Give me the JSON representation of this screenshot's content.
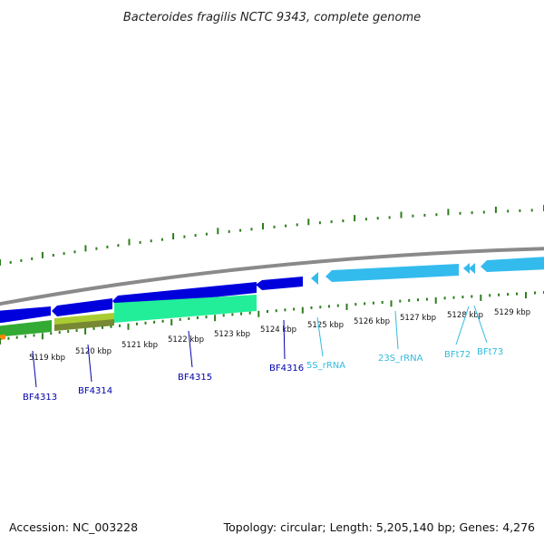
{
  "title": "Bacteroides fragilis NCTC 9343, complete genome",
  "footer": {
    "accession": "Accession: NC_003228",
    "summary": "Topology: circular; Length: 5,205,140 bp; Genes: 4,276"
  },
  "ruler": [
    {
      "label": "5119 kbp"
    },
    {
      "label": "5120 kbp"
    },
    {
      "label": "5121 kbp"
    },
    {
      "label": "5122 kbp"
    },
    {
      "label": "5123 kbp"
    },
    {
      "label": "5124 kbp"
    },
    {
      "label": "5125 kbp"
    },
    {
      "label": "5126 kbp"
    },
    {
      "label": "5127 kbp"
    },
    {
      "label": "5128 kbp"
    },
    {
      "label": "5129 kbp"
    }
  ],
  "genes": [
    {
      "label": "BF4313",
      "color": "#0000aa"
    },
    {
      "label": "BF4314",
      "color": "#0000aa"
    },
    {
      "label": "BF4315",
      "color": "#0000aa"
    },
    {
      "label": "BF4316",
      "color": "#0000aa"
    },
    {
      "label": "5S_rRNA",
      "color": "#33bbdd"
    },
    {
      "label": "23S_rRNA",
      "color": "#33bbdd"
    },
    {
      "label": "BFt72",
      "color": "#33bbdd"
    },
    {
      "label": "BFt73",
      "color": "#33bbdd"
    }
  ],
  "colors": {
    "backbone": "#8a8a8a",
    "tick": "#2e7d1e",
    "cds": "#0000dd",
    "rna": "#33bbee",
    "green": "#33aa33",
    "mint": "#22ee99",
    "olive": "#88aa22",
    "orange": "#ff8800"
  }
}
